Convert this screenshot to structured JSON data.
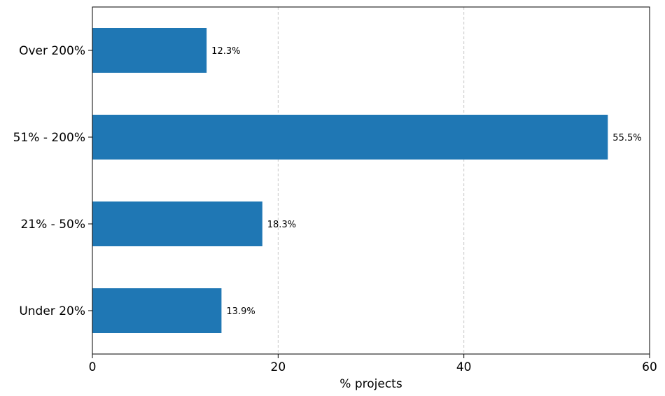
{
  "chart_data": {
    "type": "bar",
    "orientation": "horizontal",
    "categories": [
      "Under 20%",
      "21% - 50%",
      "51% - 200%",
      "Over 200%"
    ],
    "values": [
      13.9,
      18.3,
      55.5,
      12.3
    ],
    "value_labels": [
      "13.9%",
      "18.3%",
      "55.5%",
      "12.3%"
    ],
    "xlabel": "% projects",
    "ylabel": "",
    "title": "",
    "xlim": [
      0,
      60
    ],
    "xticks": [
      0,
      20,
      40,
      60
    ],
    "grid": "x-dashed",
    "bar_color": "#1f77b4"
  }
}
